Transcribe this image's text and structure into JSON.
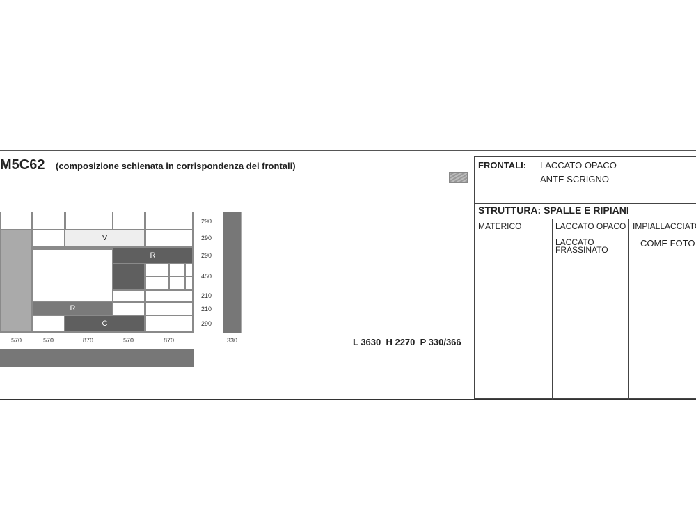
{
  "title": {
    "code": "M5C62",
    "subtitle": "(composizione schienata in corrispondenza dei frontali)"
  },
  "drawing": {
    "labels": {
      "v": "V",
      "r_top": "R",
      "r_mid": "R",
      "c": "C"
    },
    "heights": [
      "290",
      "290",
      "290",
      "450",
      "210",
      "210",
      "290"
    ],
    "widths": [
      "570",
      "570",
      "870",
      "570",
      "870"
    ],
    "depth": "330"
  },
  "overall": "L 3630  H 2270  P 330/366",
  "colors": {
    "dark": "#5f5f5f",
    "mid": "#7a7a7a",
    "light": "#aaaaaa"
  },
  "table": {
    "frontali_label": "FRONTALI:",
    "frontali_values": [
      "LACCATO OPACO",
      "ANTE SCRIGNO"
    ],
    "struttura_label": "STRUTTURA: SPALLE E RIPIANI",
    "col1": [
      "MATERICO"
    ],
    "col2": [
      "LACCATO OPACO",
      "LACCATO FRASSINATO"
    ],
    "col3": [
      "IMPIALLACCIATO",
      "COME FOTO"
    ]
  }
}
